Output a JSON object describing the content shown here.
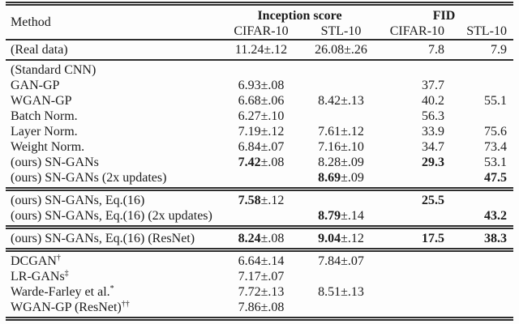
{
  "colors": {
    "ink": "#1c1c1c",
    "rule": "#2e2e2e",
    "background": "#fdfdfd"
  },
  "table": {
    "header": {
      "method": "Method",
      "group1": "Inception score",
      "group2": "FID",
      "sub": [
        "CIFAR-10",
        "STL-10",
        "CIFAR-10",
        "STL-10"
      ]
    },
    "groups": [
      {
        "separator": "single",
        "rows": [
          {
            "method": "(Real data)",
            "cells": [
              {
                "v": "11.24",
                "e": "±.12"
              },
              {
                "v": "26.08",
                "e": "±.26"
              },
              {
                "v": "7.8"
              },
              {
                "v": "7.9"
              }
            ]
          }
        ]
      },
      {
        "separator": "double",
        "rows": [
          {
            "method": "(Standard CNN)",
            "cells": [
              {},
              {},
              {},
              {}
            ]
          },
          {
            "method": "GAN-GP",
            "cells": [
              {
                "v": "6.93",
                "e": "±.08"
              },
              {},
              {
                "v": "37.7"
              },
              {}
            ]
          },
          {
            "method": "WGAN-GP",
            "cells": [
              {
                "v": "6.68",
                "e": "±.06"
              },
              {
                "v": "8.42",
                "e": "±.13"
              },
              {
                "v": "40.2"
              },
              {
                "v": "55.1"
              }
            ]
          },
          {
            "method": "Batch Norm.",
            "cells": [
              {
                "v": "6.27",
                "e": "±.10"
              },
              {},
              {
                "v": "56.3"
              },
              {}
            ]
          },
          {
            "method": "Layer Norm.",
            "cells": [
              {
                "v": "7.19",
                "e": "±.12"
              },
              {
                "v": "7.61",
                "e": "±.12"
              },
              {
                "v": "33.9"
              },
              {
                "v": "75.6"
              }
            ]
          },
          {
            "method": "Weight Norm.",
            "cells": [
              {
                "v": "6.84",
                "e": "±.07"
              },
              {
                "v": "7.16",
                "e": "±.10"
              },
              {
                "v": "34.7"
              },
              {
                "v": "73.4"
              }
            ]
          },
          {
            "method": "(ours) SN-GANs",
            "cells": [
              {
                "v": "7.42",
                "e": "±.08",
                "b": true
              },
              {
                "v": "8.28",
                "e": "±.09"
              },
              {
                "v": "29.3",
                "b": true
              },
              {
                "v": "53.1"
              }
            ]
          },
          {
            "method": "(ours) SN-GANs (2x updates)",
            "cells": [
              {},
              {
                "v": "8.69",
                "e": "±.09",
                "b": true
              },
              {},
              {
                "v": "47.5",
                "b": true
              }
            ]
          }
        ]
      },
      {
        "separator": "double",
        "rows": [
          {
            "method": "(ours) SN-GANs, Eq.(16)",
            "cells": [
              {
                "v": "7.58",
                "e": "±.12",
                "b": true
              },
              {},
              {
                "v": "25.5",
                "b": true
              },
              {}
            ]
          },
          {
            "method": "(ours) SN-GANs, Eq.(16) (2x updates)",
            "cells": [
              {},
              {
                "v": "8.79",
                "e": "±.14",
                "b": true
              },
              {},
              {
                "v": "43.2",
                "b": true
              }
            ]
          }
        ]
      },
      {
        "separator": "double",
        "rows": [
          {
            "method": "(ours) SN-GANs, Eq.(16) (ResNet)",
            "cells": [
              {
                "v": "8.24",
                "e": "±.08",
                "b": true
              },
              {
                "v": "9.04",
                "e": "±.12",
                "b": true
              },
              {
                "v": "17.5",
                "b": true
              },
              {
                "v": "38.3",
                "b": true
              }
            ]
          }
        ]
      },
      {
        "separator": "none",
        "rows": [
          {
            "method": "DCGAN",
            "sup": "†",
            "cells": [
              {
                "v": "6.64",
                "e": "±.14"
              },
              {
                "v": "7.84",
                "e": "±.07"
              },
              {},
              {}
            ]
          },
          {
            "method": "LR-GANs",
            "sup": "‡",
            "cells": [
              {
                "v": "7.17",
                "e": "±.07"
              },
              {},
              {},
              {}
            ]
          },
          {
            "method": "Warde-Farley et al.",
            "sup": "*",
            "cells": [
              {
                "v": "7.72",
                "e": "±.13"
              },
              {
                "v": "8.51",
                "e": "±.13"
              },
              {},
              {}
            ]
          },
          {
            "method": "WGAN-GP (ResNet)",
            "sup": "††",
            "cells": [
              {
                "v": "7.86",
                "e": "±.08"
              },
              {},
              {},
              {}
            ]
          }
        ]
      }
    ]
  }
}
